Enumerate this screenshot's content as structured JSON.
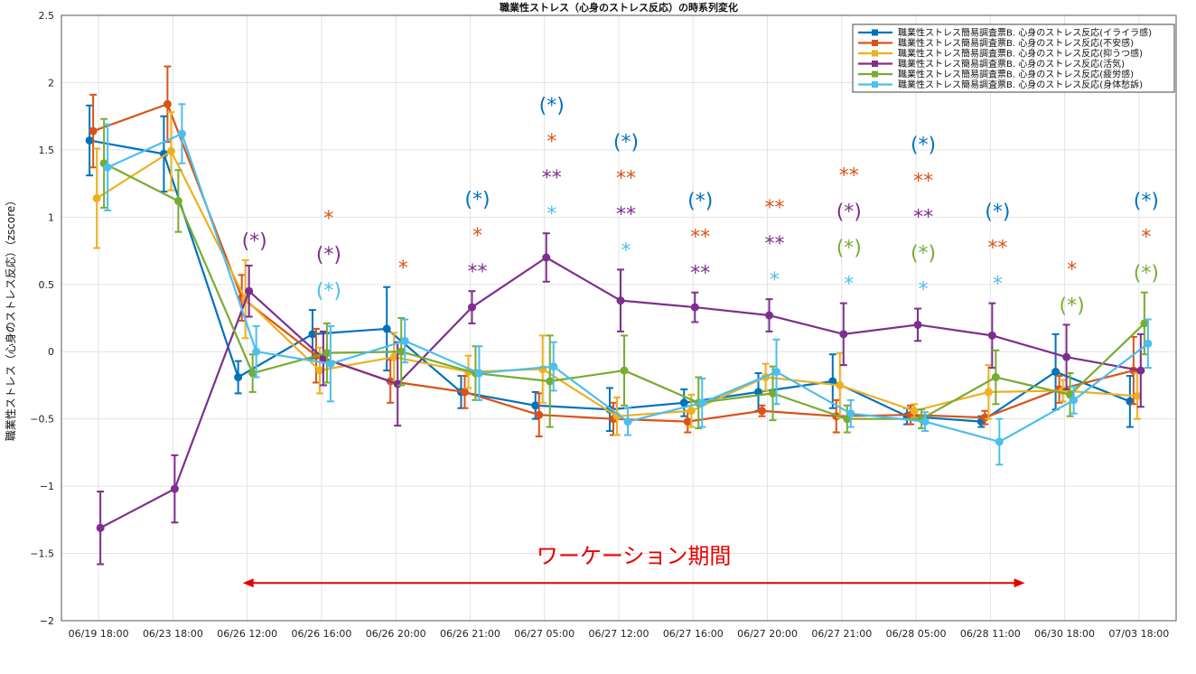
{
  "chart_data": {
    "type": "line",
    "title": "職業性ストレス（心身のストレス反応）の時系列変化",
    "ylabel": "職業性ストレス（心身のストレス反応）（zscore）",
    "xlabel": "",
    "ylim": [
      -2,
      2.5
    ],
    "yticks": [
      -2,
      -1.5,
      -1,
      -0.5,
      0,
      0.5,
      1,
      1.5,
      2,
      2.5
    ],
    "ytick_labels": [
      "−2",
      "−1.5",
      "−1",
      "−0.5",
      "0",
      "0.5",
      "1",
      "1.5",
      "2",
      "2.5"
    ],
    "categories": [
      "06/19 18:00",
      "06/23 18:00",
      "06/26 12:00",
      "06/26 16:00",
      "06/26 20:00",
      "06/26 21:00",
      "06/27 05:00",
      "06/27 12:00",
      "06/27 16:00",
      "06/27 20:00",
      "06/27 21:00",
      "06/28 05:00",
      "06/28 11:00",
      "06/30 18:00",
      "07/03 18:00"
    ],
    "grid": true,
    "legend_position": "top-right",
    "series": [
      {
        "name": "職業性ストレス簡易調査票B. 心身のストレス反応(イライラ感)",
        "color": "#0072BD",
        "values": [
          1.57,
          1.47,
          -0.19,
          0.13,
          0.17,
          -0.3,
          -0.4,
          -0.43,
          -0.38,
          -0.3,
          -0.22,
          -0.48,
          -0.52,
          -0.15,
          -0.37
        ],
        "errors": [
          0.26,
          0.28,
          0.12,
          0.18,
          0.31,
          0.12,
          0.1,
          0.16,
          0.1,
          0.14,
          0.2,
          0.06,
          0.04,
          0.28,
          0.19
        ]
      },
      {
        "name": "職業性ストレス簡易調査票B. 心身のストレス反応(不安感)",
        "color": "#D95319",
        "values": [
          1.64,
          1.84,
          0.4,
          -0.03,
          -0.22,
          -0.3,
          -0.47,
          -0.5,
          -0.52,
          -0.44,
          -0.48,
          -0.47,
          -0.49,
          -0.28,
          -0.14
        ],
        "errors": [
          0.27,
          0.28,
          0.17,
          0.2,
          0.16,
          0.12,
          0.16,
          0.12,
          0.08,
          0.04,
          0.12,
          0.07,
          0.05,
          0.1,
          0.25
        ]
      },
      {
        "name": "職業性ストレス簡易調査票B. 心身のストレス反応(抑うつ感)",
        "color": "#EDB120",
        "values": [
          1.14,
          1.49,
          0.39,
          -0.14,
          -0.04,
          -0.15,
          -0.13,
          -0.48,
          -0.44,
          -0.19,
          -0.25,
          -0.44,
          -0.3,
          -0.29,
          -0.33
        ],
        "errors": [
          0.37,
          0.29,
          0.29,
          0.17,
          0.18,
          0.12,
          0.25,
          0.14,
          0.12,
          0.1,
          0.24,
          0.05,
          0.2,
          0.08,
          0.17
        ]
      },
      {
        "name": "職業性ストレス簡易調査票B. 心身のストレス反応(活気)",
        "color": "#7E2F8E",
        "values": [
          -1.31,
          -1.02,
          0.45,
          -0.05,
          -0.24,
          0.33,
          0.7,
          0.38,
          0.33,
          0.27,
          0.13,
          0.2,
          0.12,
          -0.04,
          -0.14
        ],
        "errors": [
          0.27,
          0.25,
          0.19,
          0.2,
          0.31,
          0.12,
          0.18,
          0.23,
          0.11,
          0.12,
          0.23,
          0.12,
          0.24,
          0.24,
          0.27
        ]
      },
      {
        "name": "職業性ストレス簡易調査票B. 心身のストレス反応(疲労感)",
        "color": "#77AC30",
        "values": [
          1.4,
          1.12,
          -0.16,
          -0.01,
          0.0,
          -0.16,
          -0.22,
          -0.14,
          -0.38,
          -0.31,
          -0.5,
          -0.5,
          -0.19,
          -0.32,
          0.21
        ],
        "errors": [
          0.33,
          0.23,
          0.14,
          0.22,
          0.25,
          0.2,
          0.34,
          0.26,
          0.19,
          0.2,
          0.1,
          0.07,
          0.2,
          0.16,
          0.23
        ]
      },
      {
        "name": "職業性ストレス簡易調査票B. 心身のストレス反応(身体愁訴)",
        "color": "#4DBEEE",
        "values": [
          1.37,
          1.62,
          0.0,
          -0.09,
          0.08,
          -0.16,
          -0.11,
          -0.52,
          -0.38,
          -0.15,
          -0.46,
          -0.52,
          -0.67,
          -0.36,
          0.06
        ],
        "errors": [
          0.32,
          0.22,
          0.19,
          0.28,
          0.16,
          0.2,
          0.18,
          0.1,
          0.18,
          0.24,
          0.1,
          0.07,
          0.17,
          0.1,
          0.18
        ]
      }
    ],
    "significance": [
      {
        "index": 2,
        "marks": [
          {
            "text": "(*)",
            "color": "#7E2F8E"
          }
        ]
      },
      {
        "index": 3,
        "marks": [
          {
            "text": "*",
            "color": "#D95319"
          },
          {
            "text": "(*)",
            "color": "#7E2F8E"
          },
          {
            "text": "(*)",
            "color": "#4DBEEE"
          }
        ]
      },
      {
        "index": 4,
        "marks": [
          {
            "text": "*",
            "color": "#D95319"
          }
        ]
      },
      {
        "index": 5,
        "marks": [
          {
            "text": "(*)",
            "color": "#0072BD"
          },
          {
            "text": "*",
            "color": "#D95319"
          },
          {
            "text": "**",
            "color": "#7E2F8E"
          }
        ]
      },
      {
        "index": 6,
        "marks": [
          {
            "text": "(*)",
            "color": "#0072BD"
          },
          {
            "text": "*",
            "color": "#D95319"
          },
          {
            "text": "**",
            "color": "#7E2F8E"
          },
          {
            "text": "*",
            "color": "#4DBEEE"
          }
        ]
      },
      {
        "index": 7,
        "marks": [
          {
            "text": "(*)",
            "color": "#0072BD"
          },
          {
            "text": "**",
            "color": "#D95319"
          },
          {
            "text": "**",
            "color": "#7E2F8E"
          },
          {
            "text": "*",
            "color": "#4DBEEE"
          }
        ]
      },
      {
        "index": 8,
        "marks": [
          {
            "text": "(*)",
            "color": "#0072BD"
          },
          {
            "text": "**",
            "color": "#D95319"
          },
          {
            "text": "**",
            "color": "#7E2F8E"
          }
        ]
      },
      {
        "index": 9,
        "marks": [
          {
            "text": "**",
            "color": "#D95319"
          },
          {
            "text": "**",
            "color": "#7E2F8E"
          },
          {
            "text": "*",
            "color": "#4DBEEE"
          }
        ]
      },
      {
        "index": 10,
        "marks": [
          {
            "text": "**",
            "color": "#D95319"
          },
          {
            "text": "(*)",
            "color": "#7E2F8E"
          },
          {
            "text": "(*)",
            "color": "#77AC30"
          },
          {
            "text": "*",
            "color": "#4DBEEE"
          }
        ]
      },
      {
        "index": 11,
        "marks": [
          {
            "text": "(*)",
            "color": "#0072BD"
          },
          {
            "text": "**",
            "color": "#D95319"
          },
          {
            "text": "**",
            "color": "#7E2F8E"
          },
          {
            "text": "(*)",
            "color": "#77AC30"
          },
          {
            "text": "*",
            "color": "#4DBEEE"
          }
        ]
      },
      {
        "index": 12,
        "marks": [
          {
            "text": "(*)",
            "color": "#0072BD"
          },
          {
            "text": "**",
            "color": "#D95319"
          },
          {
            "text": "*",
            "color": "#4DBEEE"
          }
        ]
      },
      {
        "index": 13,
        "marks": [
          {
            "text": "*",
            "color": "#D95319"
          },
          {
            "text": "(*)",
            "color": "#77AC30"
          }
        ]
      },
      {
        "index": 14,
        "marks": [
          {
            "text": "(*)",
            "color": "#0072BD"
          },
          {
            "text": "*",
            "color": "#D95319"
          },
          {
            "text": "(*)",
            "color": "#77AC30"
          }
        ]
      }
    ],
    "annotation": {
      "text": "ワーケーション期間",
      "color": "#e60000",
      "from_index": 2,
      "to_index": 13
    }
  }
}
